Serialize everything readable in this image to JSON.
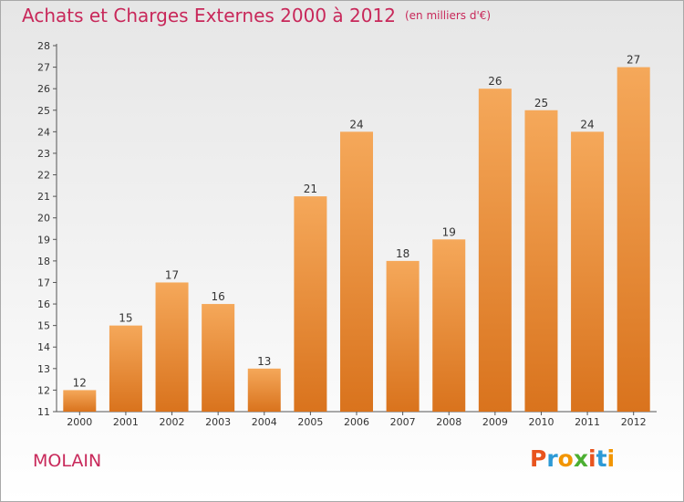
{
  "header": {
    "title": "Achats et Charges Externes 2000 à 2012",
    "unit": "(en milliers d'€)"
  },
  "footer": {
    "commune": "MOLAIN",
    "brand": "Proxiti",
    "brand_colors": [
      "#e8541e",
      "#2d9ad6",
      "#f29500",
      "#4caf32",
      "#e8541e",
      "#2d9ad6",
      "#f29500"
    ]
  },
  "colors": {
    "accent": "#c8285a",
    "bar_top": "#f5a85a",
    "bar_bottom": "#d9731d"
  },
  "chart_data": {
    "type": "bar",
    "title": "Achats et Charges Externes 2000 à 2012",
    "subtitle": "(en milliers d'€)",
    "xlabel": "",
    "ylabel": "",
    "categories": [
      "2000",
      "2001",
      "2002",
      "2003",
      "2004",
      "2005",
      "2006",
      "2007",
      "2008",
      "2009",
      "2010",
      "2011",
      "2012"
    ],
    "values": [
      12,
      15,
      17,
      16,
      13,
      21,
      24,
      18,
      19,
      26,
      25,
      24,
      27
    ],
    "ylim": [
      11,
      28
    ],
    "yticks": [
      11,
      12,
      13,
      14,
      15,
      16,
      17,
      18,
      19,
      20,
      21,
      22,
      23,
      24,
      25,
      26,
      27,
      28
    ],
    "grid": false,
    "data_labels": true
  }
}
